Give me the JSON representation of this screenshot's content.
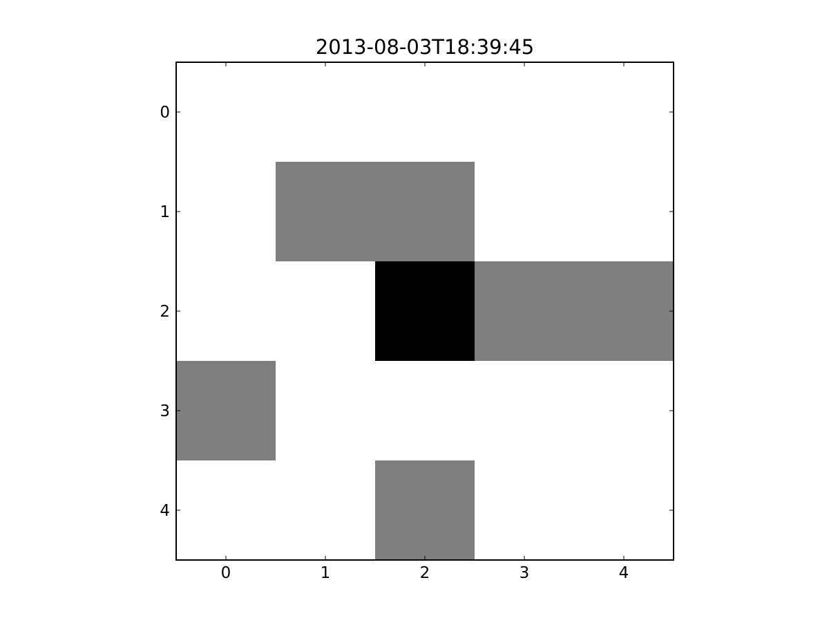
{
  "chart_data": {
    "type": "heatmap",
    "title": "2013-08-03T18:39:45",
    "xlabel": "",
    "ylabel": "",
    "x_ticks": [
      "0",
      "1",
      "2",
      "3",
      "4"
    ],
    "y_ticks": [
      "0",
      "1",
      "2",
      "3",
      "4"
    ],
    "xlim": [
      -0.5,
      4.5
    ],
    "ylim": [
      4.5,
      -0.5
    ],
    "colormap": "gray_r",
    "value_range": [
      0,
      2
    ],
    "grid": false,
    "legend": "none",
    "values": [
      [
        0,
        0,
        0,
        0,
        0
      ],
      [
        0,
        1,
        1,
        0,
        0
      ],
      [
        0,
        0,
        2,
        1,
        1
      ],
      [
        1,
        0,
        0,
        0,
        0
      ],
      [
        0,
        0,
        1,
        0,
        0
      ]
    ],
    "colors": {
      "0": "#ffffff",
      "1": "#7f7f7f",
      "2": "#000000"
    }
  }
}
